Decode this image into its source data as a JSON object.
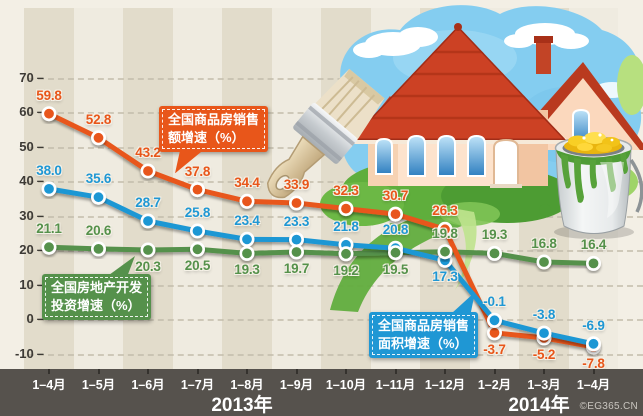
{
  "chart_data": {
    "type": "line",
    "categories": [
      "1–4月",
      "1–5月",
      "1–6月",
      "1–7月",
      "1–8月",
      "1–9月",
      "1–10月",
      "1–11月",
      "1–12月",
      "1–2月",
      "1–3月",
      "1–4月"
    ],
    "series": [
      {
        "id": "sales_amount",
        "name": "全国商品房销售额增速（%）",
        "color": "#e8561a",
        "values": [
          59.8,
          52.8,
          43.2,
          37.8,
          34.4,
          33.9,
          32.3,
          30.7,
          26.3,
          -3.7,
          -5.2,
          -7.8
        ],
        "label_pos": [
          "a",
          "a",
          "a",
          "a",
          "a",
          "a",
          "a",
          "a",
          "a",
          "b",
          "b",
          "b"
        ]
      },
      {
        "id": "sales_area",
        "name": "全国商品房销售面积增速（%）",
        "color": "#1f97d4",
        "values": [
          38.0,
          35.6,
          28.7,
          25.8,
          23.4,
          23.3,
          21.8,
          20.8,
          17.3,
          -0.1,
          -3.8,
          -6.9
        ],
        "label_pos": [
          "a",
          "a",
          "a",
          "a",
          "a",
          "a",
          "a",
          "a",
          "b",
          "a",
          "a",
          "a"
        ]
      },
      {
        "id": "investment",
        "name": "全国房地产开发投资增速（%）",
        "color": "#55914b",
        "values": [
          21.1,
          20.6,
          20.3,
          20.5,
          19.3,
          19.7,
          19.2,
          19.5,
          19.8,
          19.3,
          16.8,
          16.4
        ],
        "label_pos": [
          "a",
          "a",
          "b",
          "b",
          "b",
          "b",
          "b",
          "b",
          "a",
          "a",
          "a",
          "a"
        ]
      }
    ],
    "ylim": [
      -10,
      70
    ],
    "yticks": [
      70,
      60,
      50,
      40,
      30,
      20,
      10,
      0,
      -10
    ],
    "grid": "dashed-horizontal",
    "legend_position": "callout-boxes-on-plot",
    "x_year_groups": [
      {
        "label": "2013年",
        "months": [
          "1–4月",
          "1–5月",
          "1–6月",
          "1–7月",
          "1–8月",
          "1–9月",
          "1–10月",
          "1–11月",
          "1–12月"
        ]
      },
      {
        "label": "2014年",
        "months": [
          "1–2月",
          "1–3月",
          "1–4月"
        ]
      }
    ]
  },
  "callouts": {
    "sales_amount": {
      "line1": "全国商品房销售",
      "line2": "额增速（%）"
    },
    "investment": {
      "line1": "全国房地产开发",
      "line2": "投资增速（%）"
    },
    "sales_area": {
      "line1": "全国商品房销售",
      "line2": "面积增速（%）"
    }
  },
  "footer": {
    "years": [
      "2013年",
      "2014年"
    ],
    "watermark": "©EG365.CN"
  },
  "decor_icons": [
    "sky-splash",
    "cloud-icon",
    "house-illustration",
    "greenery-splash",
    "paintbrush-icon",
    "paint-bucket-icon",
    "gold-ingots-icon",
    "paint-drips"
  ],
  "colors": {
    "background": "#f3efe5",
    "stripe_dark": "#e2dccb",
    "footer_bg": "#56524d",
    "orange": "#e8561a",
    "blue": "#1f97d4",
    "green": "#55914b"
  }
}
